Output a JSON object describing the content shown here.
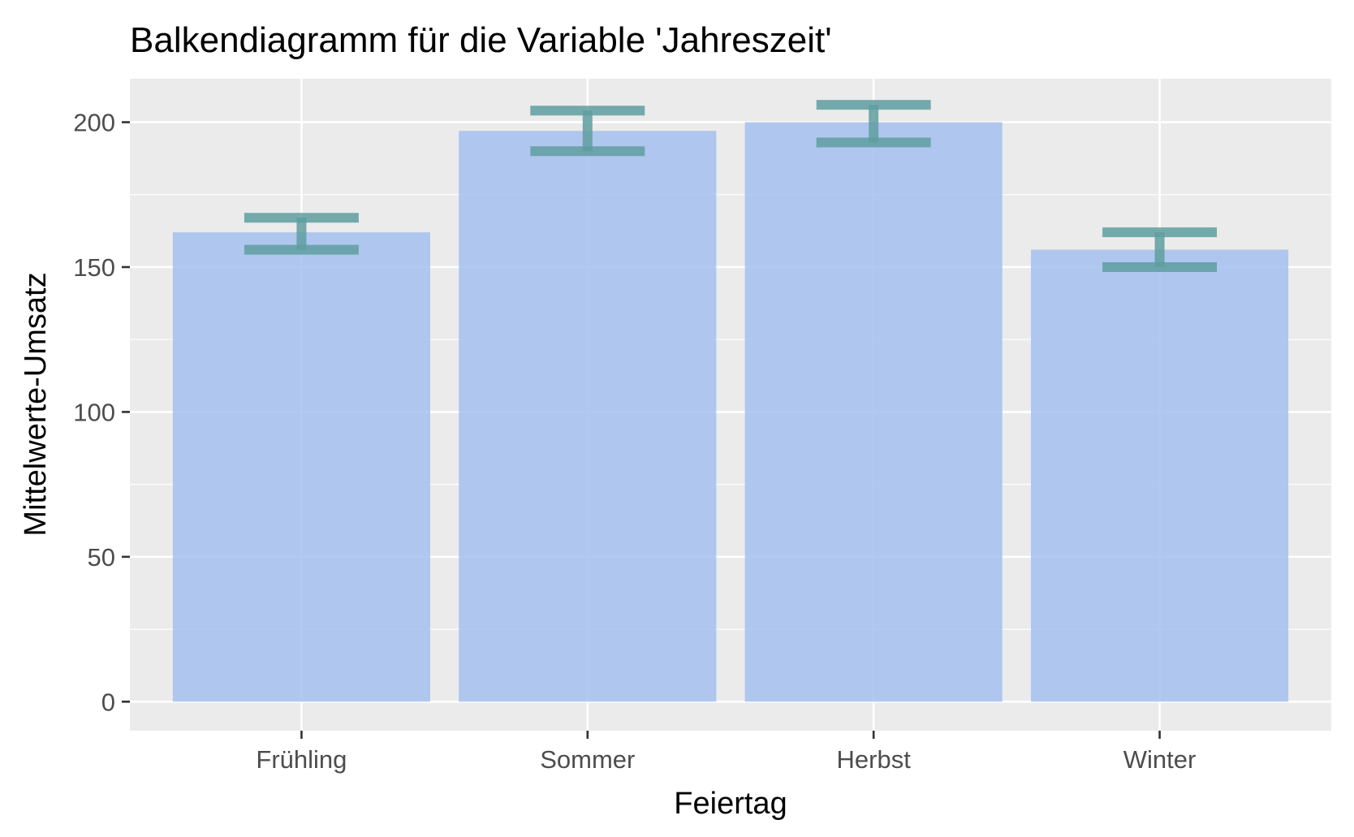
{
  "chart_data": {
    "type": "bar",
    "title": "Balkendiagramm für die Variable 'Jahreszeit'",
    "xlabel": "Feiertag",
    "ylabel": "Mittelwerte-Umsatz",
    "categories": [
      "Frühling",
      "Sommer",
      "Herbst",
      "Winter"
    ],
    "values": [
      162,
      197,
      200,
      156
    ],
    "error_lower": [
      156,
      190,
      193,
      150
    ],
    "error_upper": [
      167,
      204,
      206,
      162
    ],
    "ylim": [
      -10,
      215
    ],
    "yticks": [
      0,
      50,
      100,
      150,
      200
    ],
    "ytick_labels": [
      "0",
      "50",
      "100",
      "150",
      "200"
    ],
    "grid": true,
    "legend": "none",
    "colors": {
      "panel_background": "#ebebeb",
      "grid_major": "#ffffff",
      "bar_fill": "#a4bfee",
      "error_bar": "#5f9ea0",
      "tick_mark": "#333333",
      "tick_label": "#4d4d4d",
      "text": "#000000"
    }
  }
}
